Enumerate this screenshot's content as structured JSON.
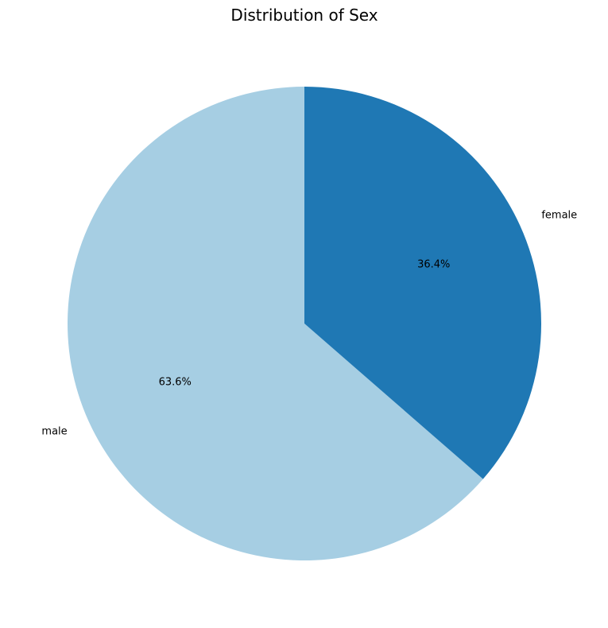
{
  "chart_data": {
    "type": "pie",
    "title": "Distribution of Sex",
    "start_angle_deg": 90,
    "direction": "counterclockwise",
    "slices": [
      {
        "label": "male",
        "value": 63.6,
        "pct_label": "63.6%",
        "color": "#a6cee3"
      },
      {
        "label": "female",
        "value": 36.4,
        "pct_label": "36.4%",
        "color": "#1f78b4"
      }
    ]
  }
}
